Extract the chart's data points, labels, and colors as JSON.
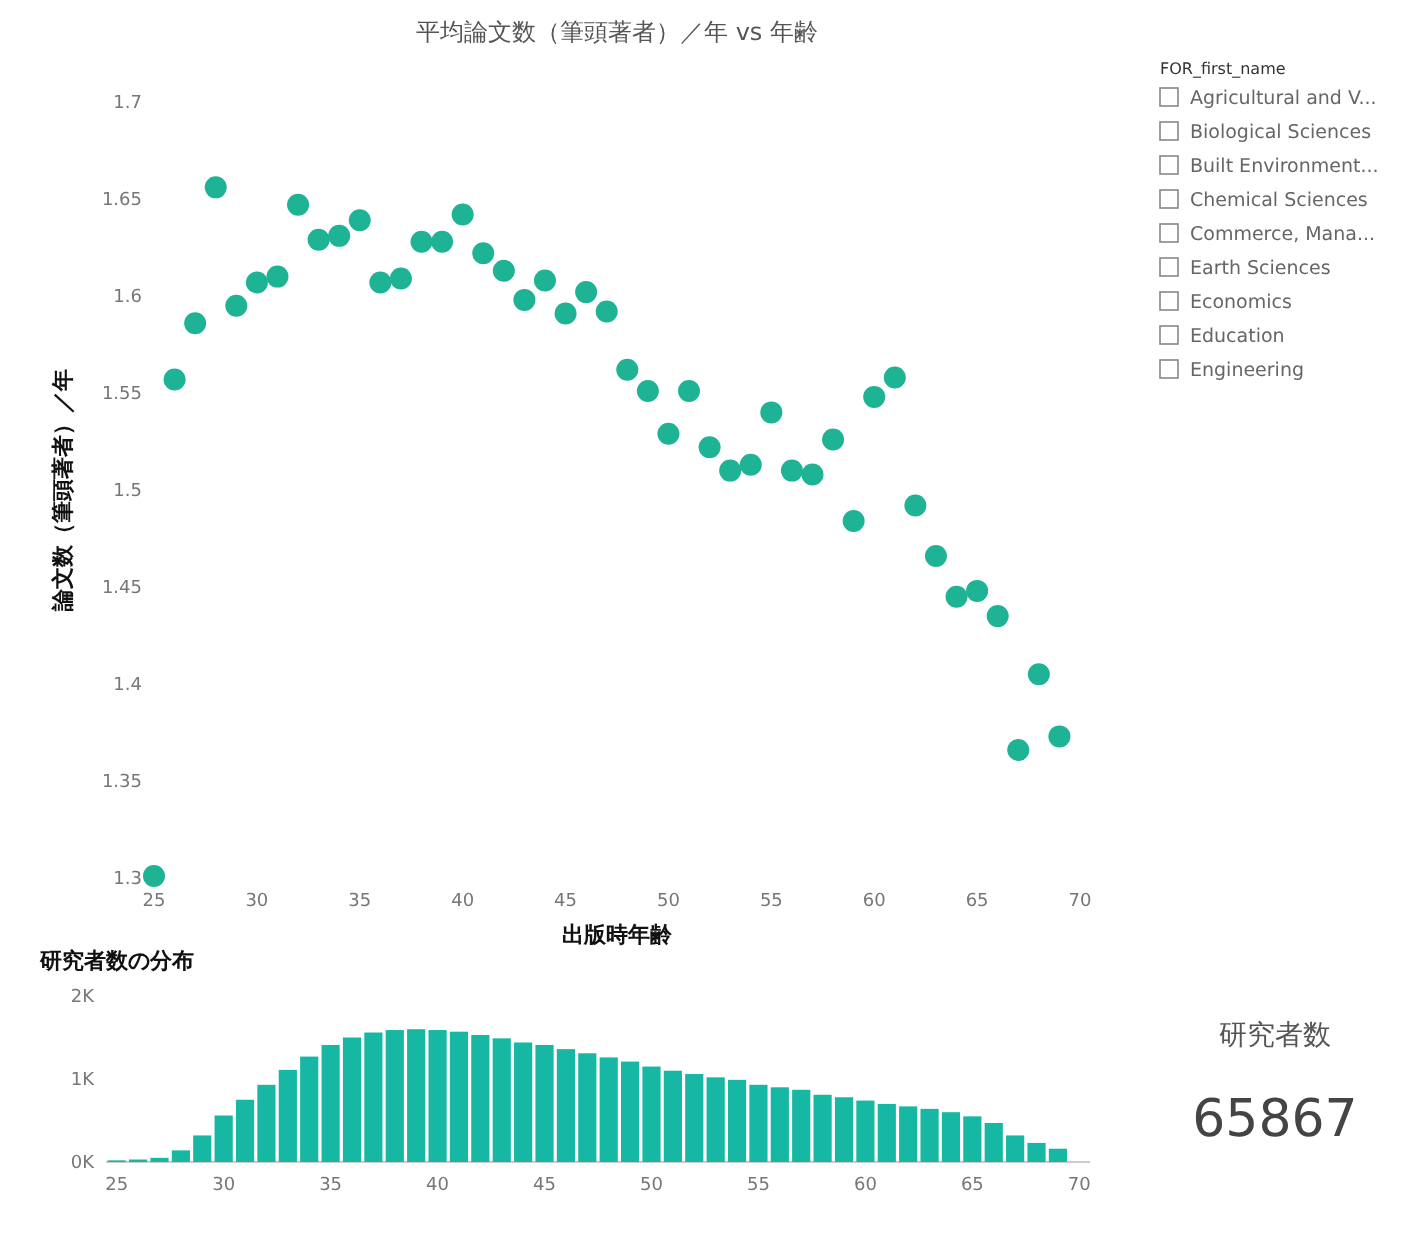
{
  "chart_data": [
    {
      "type": "scatter",
      "title": "平均論文数（筆頭著者）／年 vs 年齢",
      "xlabel": "出版時年齢",
      "ylabel": "論文数（筆頭著者）／年",
      "color": "#1db394",
      "marker": "circle",
      "x": [
        25,
        26,
        27,
        28,
        29,
        30,
        31,
        32,
        33,
        34,
        35,
        36,
        37,
        38,
        39,
        40,
        41,
        42,
        43,
        44,
        45,
        46,
        47,
        48,
        49,
        50,
        51,
        52,
        53,
        54,
        55,
        56,
        57,
        58,
        59,
        60,
        61,
        62,
        63,
        64,
        65,
        66,
        67,
        68,
        69
      ],
      "values": [
        1.301,
        1.557,
        1.586,
        1.656,
        1.595,
        1.607,
        1.61,
        1.647,
        1.629,
        1.631,
        1.639,
        1.607,
        1.609,
        1.628,
        1.628,
        1.642,
        1.622,
        1.613,
        1.598,
        1.608,
        1.591,
        1.602,
        1.592,
        1.562,
        1.551,
        1.529,
        1.551,
        1.522,
        1.51,
        1.513,
        1.54,
        1.51,
        1.508,
        1.526,
        1.484,
        1.548,
        1.558,
        1.492,
        1.466,
        1.445,
        1.448,
        1.435,
        1.366,
        1.405,
        1.373
      ],
      "xlim": [
        25,
        70
      ],
      "ylim": [
        1.3,
        1.7
      ],
      "xticks": [
        25,
        30,
        35,
        40,
        45,
        50,
        55,
        60,
        65,
        70
      ],
      "yticks": [
        1.3,
        1.35,
        1.4,
        1.45,
        1.5,
        1.55,
        1.6,
        1.65,
        1.7
      ]
    },
    {
      "type": "other",
      "title": "FOR_first_name",
      "annotations": [
        "Agricultural and V...",
        "Biological Sciences",
        "Built Environment...",
        "Chemical Sciences",
        "Commerce, Mana...",
        "Earth Sciences",
        "Economics",
        "Education",
        "Engineering"
      ]
    },
    {
      "type": "bar",
      "title": "研究者数の分布",
      "color": "#17b8a3",
      "x": [
        25,
        26,
        27,
        28,
        29,
        30,
        31,
        32,
        33,
        34,
        35,
        36,
        37,
        38,
        39,
        40,
        41,
        42,
        43,
        44,
        45,
        46,
        47,
        48,
        49,
        50,
        51,
        52,
        53,
        54,
        55,
        56,
        57,
        58,
        59,
        60,
        61,
        62,
        63,
        64,
        65,
        66,
        67,
        68,
        69
      ],
      "values": [
        20,
        30,
        50,
        140,
        320,
        560,
        750,
        930,
        1110,
        1270,
        1410,
        1500,
        1560,
        1590,
        1600,
        1590,
        1570,
        1530,
        1490,
        1440,
        1410,
        1360,
        1310,
        1260,
        1210,
        1150,
        1100,
        1060,
        1020,
        990,
        930,
        900,
        870,
        810,
        780,
        740,
        700,
        670,
        640,
        600,
        550,
        470,
        320,
        230,
        160
      ],
      "xlim": [
        24.5,
        70.5
      ],
      "ylim": [
        0,
        2000
      ],
      "xticks": [
        25,
        30,
        35,
        40,
        45,
        50,
        55,
        60,
        65,
        70
      ],
      "yticks": [
        {
          "value": 0,
          "label": "0K"
        },
        {
          "value": 1000,
          "label": "1K"
        },
        {
          "value": 2000,
          "label": "2K"
        }
      ]
    },
    {
      "type": "other",
      "title": "研究者数",
      "annotations": [
        "65867"
      ]
    }
  ]
}
